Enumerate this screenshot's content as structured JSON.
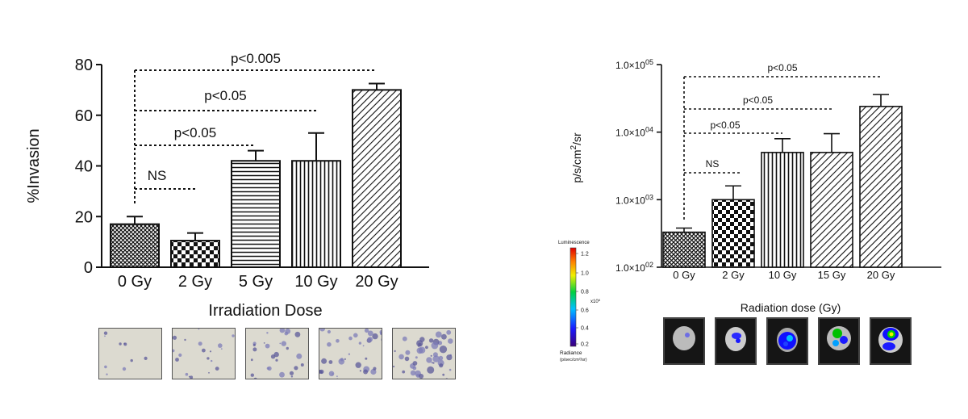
{
  "chart_data": [
    {
      "type": "bar",
      "categories": [
        "0 Gy",
        "2 Gy",
        "5 Gy",
        "10 Gy",
        "20 Gy"
      ],
      "values": [
        17,
        10.5,
        42,
        42,
        70
      ],
      "errors": [
        3,
        3,
        4,
        11,
        2.5
      ],
      "xlabel": "Irradiation Dose",
      "ylabel": "%Invasion",
      "ylim": [
        0,
        80
      ],
      "yticks": [
        "0",
        "20",
        "40",
        "60",
        "80"
      ],
      "comparisons": [
        {
          "label": "NS",
          "from": "0 Gy",
          "to": "2 Gy"
        },
        {
          "label": "p<0.05",
          "from": "0 Gy",
          "to": "5 Gy"
        },
        {
          "label": "p<0.05",
          "from": "0 Gy",
          "to": "10 Gy"
        },
        {
          "label": "p<0.005",
          "from": "0 Gy",
          "to": "20 Gy"
        }
      ],
      "patterns": [
        "crosshatch",
        "checker",
        "horizontal",
        "vertical",
        "diagonal"
      ],
      "images": [
        "microscopy-0gy",
        "microscopy-2gy",
        "microscopy-5gy",
        "microscopy-10gy",
        "microscopy-20gy"
      ]
    },
    {
      "type": "bar",
      "scale": "log",
      "categories": [
        "0 Gy",
        "2 Gy",
        "10 Gy",
        "15 Gy",
        "20 Gy"
      ],
      "values": [
        330,
        1000,
        5000,
        5000,
        24000
      ],
      "errors": [
        50,
        600,
        3000,
        4500,
        12000
      ],
      "xlabel": "Radiation dose (Gy)",
      "ylabel": "p/s/cm2/sr",
      "ylim": [
        100,
        100000
      ],
      "yticks": [
        "1.0×10^02",
        "1.0×10^03",
        "1.0×10^04",
        "1.0×10^05"
      ],
      "comparisons": [
        {
          "label": "NS",
          "from": "0 Gy",
          "to": "2 Gy"
        },
        {
          "label": "p<0.05",
          "from": "0 Gy",
          "to": "10 Gy"
        },
        {
          "label": "p<0.05",
          "from": "0 Gy",
          "to": "15 Gy"
        },
        {
          "label": "p<0.05",
          "from": "0 Gy",
          "to": "20 Gy"
        }
      ],
      "patterns": [
        "crosshatch",
        "checker",
        "vertical",
        "diagonal",
        "diagonal"
      ],
      "colorbar": {
        "title": "Luminescence",
        "ticks": [
          "1.2",
          "1.0",
          "0.8",
          "0.6",
          "0.4",
          "0.2"
        ],
        "multiplier": "x10^6",
        "footer": "Radiance",
        "footer_units": "(p/sec/cm²/sr)"
      },
      "images": [
        "ivis-0gy",
        "ivis-2gy",
        "ivis-10gy",
        "ivis-15gy",
        "ivis-20gy"
      ]
    }
  ]
}
